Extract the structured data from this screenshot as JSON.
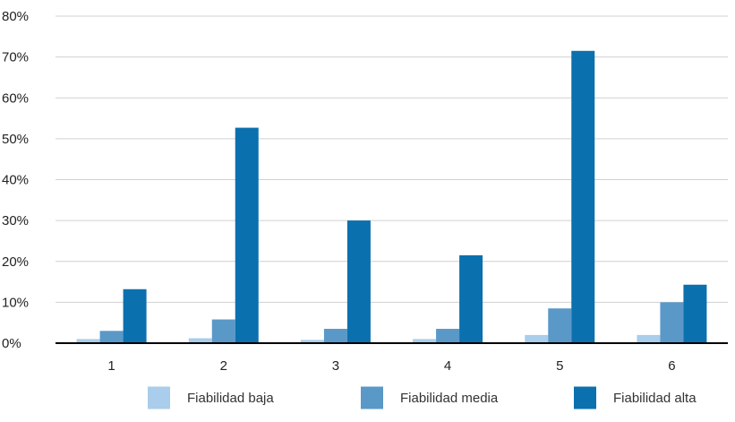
{
  "chart_data": {
    "type": "bar",
    "title": "",
    "xlabel": "",
    "ylabel": "",
    "categories": [
      "1",
      "2",
      "3",
      "4",
      "5",
      "6"
    ],
    "ylim": [
      0,
      80
    ],
    "y_ticks": [
      "0%",
      "10%",
      "20%",
      "30%",
      "40%",
      "50%",
      "60%",
      "70%",
      "80%"
    ],
    "y_tick_values": [
      0,
      10,
      20,
      30,
      40,
      50,
      60,
      70,
      80
    ],
    "grid": true,
    "legend_position": "bottom",
    "series": [
      {
        "name": "Fiabilidad baja",
        "color": "#a9cdea",
        "values": [
          1.0,
          1.2,
          0.8,
          1.0,
          2.0,
          2.0
        ]
      },
      {
        "name": "Fiabilidad media",
        "color": "#5a98c8",
        "values": [
          3.0,
          5.8,
          3.5,
          3.5,
          8.5,
          10.0
        ]
      },
      {
        "name": "Fiabilidad alta",
        "color": "#0b70ae",
        "values": [
          13.2,
          52.7,
          30.0,
          21.5,
          71.5,
          14.3
        ]
      }
    ]
  }
}
